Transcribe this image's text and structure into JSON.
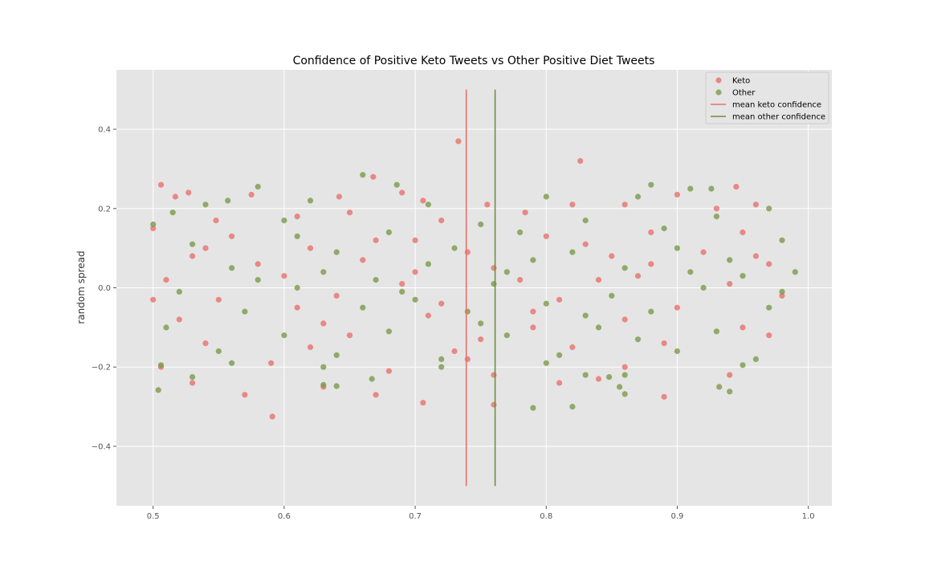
{
  "chart_data": {
    "type": "scatter",
    "title": "Confidence of Positive Keto Tweets vs Other Positive Diet Tweets",
    "xlabel": "",
    "ylabel": "random spread",
    "xlim": [
      0.472,
      1.018
    ],
    "ylim": [
      -0.55,
      0.55
    ],
    "xticks": [
      0.5,
      0.6,
      0.7,
      0.8,
      0.9,
      1.0
    ],
    "xtick_labels": [
      "0.5",
      "0.6",
      "0.7",
      "0.8",
      "0.9",
      "1.0"
    ],
    "yticks": [
      0.4,
      0.2,
      0.0,
      -0.2,
      -0.4
    ],
    "ytick_labels": [
      "0.4",
      "0.2",
      "0.0",
      "−0.2",
      "−0.4"
    ],
    "grid": true,
    "legend_position": "top-right",
    "series": [
      {
        "name": "Keto",
        "color": "#e8706e",
        "points": [
          [
            0.733,
            0.37
          ],
          [
            0.826,
            0.32
          ],
          [
            0.506,
            0.26
          ],
          [
            0.527,
            0.24
          ],
          [
            0.517,
            0.23
          ],
          [
            0.642,
            0.23
          ],
          [
            0.668,
            0.28
          ],
          [
            0.706,
            0.22
          ],
          [
            0.945,
            0.255
          ],
          [
            0.69,
            0.24
          ],
          [
            0.575,
            0.235
          ],
          [
            0.61,
            0.18
          ],
          [
            0.82,
            0.21
          ],
          [
            0.86,
            0.21
          ],
          [
            0.9,
            0.235
          ],
          [
            0.72,
            0.17
          ],
          [
            0.548,
            0.17
          ],
          [
            0.5,
            0.15
          ],
          [
            0.96,
            0.21
          ],
          [
            0.65,
            0.19
          ],
          [
            0.784,
            0.19
          ],
          [
            0.93,
            0.2
          ],
          [
            0.755,
            0.21
          ],
          [
            0.56,
            0.13
          ],
          [
            0.62,
            0.1
          ],
          [
            0.7,
            0.12
          ],
          [
            0.8,
            0.13
          ],
          [
            0.88,
            0.14
          ],
          [
            0.95,
            0.14
          ],
          [
            0.53,
            0.08
          ],
          [
            0.66,
            0.07
          ],
          [
            0.74,
            0.09
          ],
          [
            0.85,
            0.08
          ],
          [
            0.97,
            0.06
          ],
          [
            0.51,
            0.02
          ],
          [
            0.6,
            0.03
          ],
          [
            0.69,
            0.01
          ],
          [
            0.78,
            0.02
          ],
          [
            0.87,
            0.03
          ],
          [
            0.94,
            0.01
          ],
          [
            0.55,
            -0.03
          ],
          [
            0.64,
            -0.02
          ],
          [
            0.72,
            -0.04
          ],
          [
            0.81,
            -0.03
          ],
          [
            0.9,
            -0.05
          ],
          [
            0.98,
            -0.02
          ],
          [
            0.52,
            -0.08
          ],
          [
            0.63,
            -0.09
          ],
          [
            0.71,
            -0.07
          ],
          [
            0.79,
            -0.1
          ],
          [
            0.86,
            -0.08
          ],
          [
            0.95,
            -0.1
          ],
          [
            0.54,
            -0.14
          ],
          [
            0.62,
            -0.15
          ],
          [
            0.73,
            -0.16
          ],
          [
            0.82,
            -0.15
          ],
          [
            0.89,
            -0.14
          ],
          [
            0.97,
            -0.12
          ],
          [
            0.506,
            -0.2
          ],
          [
            0.59,
            -0.19
          ],
          [
            0.68,
            -0.21
          ],
          [
            0.76,
            -0.22
          ],
          [
            0.86,
            -0.2
          ],
          [
            0.94,
            -0.22
          ],
          [
            0.53,
            -0.24
          ],
          [
            0.63,
            -0.25
          ],
          [
            0.67,
            -0.27
          ],
          [
            0.706,
            -0.29
          ],
          [
            0.76,
            -0.295
          ],
          [
            0.89,
            -0.275
          ],
          [
            0.591,
            -0.325
          ],
          [
            0.84,
            -0.23
          ],
          [
            0.57,
            -0.27
          ],
          [
            0.81,
            -0.24
          ],
          [
            0.74,
            -0.18
          ],
          [
            0.58,
            0.06
          ],
          [
            0.67,
            0.12
          ],
          [
            0.76,
            0.05
          ],
          [
            0.83,
            0.11
          ],
          [
            0.92,
            0.09
          ],
          [
            0.5,
            -0.03
          ],
          [
            0.61,
            -0.05
          ],
          [
            0.7,
            0.04
          ],
          [
            0.79,
            -0.06
          ],
          [
            0.88,
            0.06
          ],
          [
            0.96,
            0.08
          ],
          [
            0.54,
            0.1
          ],
          [
            0.65,
            -0.12
          ],
          [
            0.75,
            -0.13
          ],
          [
            0.84,
            0.02
          ]
        ]
      },
      {
        "name": "Other",
        "color": "#7a9a4a",
        "points": [
          [
            0.66,
            0.285
          ],
          [
            0.686,
            0.26
          ],
          [
            0.58,
            0.255
          ],
          [
            0.88,
            0.26
          ],
          [
            0.91,
            0.25
          ],
          [
            0.926,
            0.25
          ],
          [
            0.8,
            0.23
          ],
          [
            0.87,
            0.23
          ],
          [
            0.62,
            0.22
          ],
          [
            0.557,
            0.22
          ],
          [
            0.54,
            0.21
          ],
          [
            0.71,
            0.21
          ],
          [
            0.97,
            0.2
          ],
          [
            0.515,
            0.19
          ],
          [
            0.6,
            0.17
          ],
          [
            0.75,
            0.16
          ],
          [
            0.83,
            0.17
          ],
          [
            0.93,
            0.18
          ],
          [
            0.5,
            0.16
          ],
          [
            0.68,
            0.14
          ],
          [
            0.78,
            0.14
          ],
          [
            0.89,
            0.15
          ],
          [
            0.99,
            0.04
          ],
          [
            0.53,
            0.11
          ],
          [
            0.64,
            0.09
          ],
          [
            0.73,
            0.1
          ],
          [
            0.82,
            0.09
          ],
          [
            0.9,
            0.1
          ],
          [
            0.98,
            0.12
          ],
          [
            0.56,
            0.05
          ],
          [
            0.63,
            0.04
          ],
          [
            0.71,
            0.06
          ],
          [
            0.77,
            0.04
          ],
          [
            0.86,
            0.05
          ],
          [
            0.95,
            0.03
          ],
          [
            0.52,
            -0.01
          ],
          [
            0.61,
            0.0
          ],
          [
            0.69,
            -0.01
          ],
          [
            0.76,
            0.01
          ],
          [
            0.85,
            -0.02
          ],
          [
            0.92,
            0.0
          ],
          [
            0.57,
            -0.06
          ],
          [
            0.66,
            -0.05
          ],
          [
            0.74,
            -0.06
          ],
          [
            0.8,
            -0.04
          ],
          [
            0.88,
            -0.06
          ],
          [
            0.97,
            -0.05
          ],
          [
            0.51,
            -0.1
          ],
          [
            0.6,
            -0.12
          ],
          [
            0.68,
            -0.11
          ],
          [
            0.77,
            -0.12
          ],
          [
            0.84,
            -0.1
          ],
          [
            0.93,
            -0.11
          ],
          [
            0.55,
            -0.16
          ],
          [
            0.64,
            -0.17
          ],
          [
            0.72,
            -0.18
          ],
          [
            0.81,
            -0.17
          ],
          [
            0.9,
            -0.16
          ],
          [
            0.96,
            -0.18
          ],
          [
            0.506,
            -0.195
          ],
          [
            0.56,
            -0.19
          ],
          [
            0.63,
            -0.2
          ],
          [
            0.72,
            -0.2
          ],
          [
            0.8,
            -0.19
          ],
          [
            0.86,
            -0.22
          ],
          [
            0.95,
            -0.195
          ],
          [
            0.53,
            -0.225
          ],
          [
            0.63,
            -0.245
          ],
          [
            0.64,
            -0.248
          ],
          [
            0.667,
            -0.23
          ],
          [
            0.83,
            -0.22
          ],
          [
            0.848,
            -0.225
          ],
          [
            0.856,
            -0.25
          ],
          [
            0.86,
            -0.268
          ],
          [
            0.94,
            -0.262
          ],
          [
            0.932,
            -0.25
          ],
          [
            0.82,
            -0.3
          ],
          [
            0.79,
            -0.303
          ],
          [
            0.504,
            -0.258
          ],
          [
            0.61,
            0.13
          ],
          [
            0.7,
            -0.03
          ],
          [
            0.79,
            0.07
          ],
          [
            0.87,
            -0.13
          ],
          [
            0.94,
            0.07
          ],
          [
            0.58,
            0.02
          ],
          [
            0.67,
            0.02
          ],
          [
            0.75,
            -0.09
          ],
          [
            0.83,
            -0.07
          ],
          [
            0.91,
            0.04
          ],
          [
            0.98,
            -0.01
          ]
        ]
      }
    ],
    "lines": [
      {
        "name": "mean keto confidence",
        "x": 0.739,
        "y_range": [
          -0.5,
          0.5
        ],
        "color": "#e8706e"
      },
      {
        "name": "mean other confidence",
        "x": 0.761,
        "y_range": [
          -0.5,
          0.5
        ],
        "color": "#6f8f3f"
      }
    ]
  }
}
